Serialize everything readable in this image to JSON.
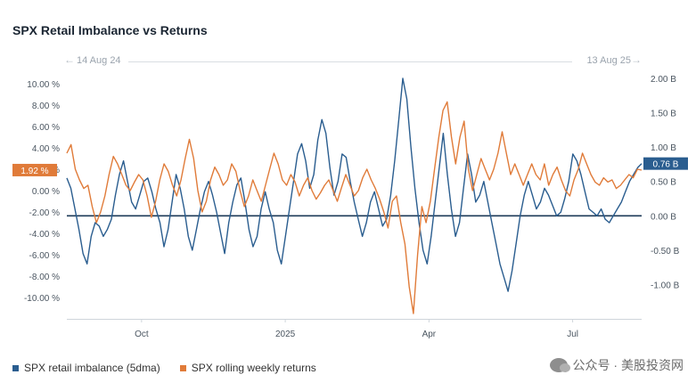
{
  "chart_data": {
    "type": "line",
    "title": "SPX Retail Imbalance vs Returns",
    "range_start_label": "14 Aug 24",
    "range_end_label": "13 Aug 25",
    "x_tick_labels": [
      "Oct",
      "2025",
      "Apr",
      "Jul"
    ],
    "x_tick_positions": [
      0.13,
      0.38,
      0.63,
      0.88
    ],
    "left_axis": {
      "ticks": [
        "10.00 %",
        "8.00 %",
        "6.00 %",
        "4.00 %",
        "2.00 %",
        "0.00 %",
        "-2.00 %",
        "-4.00 %",
        "-6.00 %",
        "-8.00 %",
        "-10.00 %"
      ],
      "tick_values": [
        10,
        8,
        6,
        4,
        2,
        0,
        -2,
        -4,
        -6,
        -8,
        -10
      ],
      "ylim": [
        -12,
        10.5
      ]
    },
    "right_axis": {
      "ticks": [
        "2.00 B",
        "1.50 B",
        "1.00 B",
        "0.50 B",
        "0.00 B",
        "-0.50 B",
        "-1.00 B"
      ],
      "tick_values": [
        2.0,
        1.5,
        1.0,
        0.5,
        0.0,
        -0.5,
        -1.0
      ],
      "ylim": [
        -1.5,
        2.0
      ]
    },
    "zero_line_value_right": 0.0,
    "series": [
      {
        "name": "SPX retail imbalance (5dma)",
        "axis": "right",
        "color": "#2a5d8f",
        "last_value_label": "0.76 B",
        "values": [
          0.55,
          0.4,
          0.1,
          -0.2,
          -0.55,
          -0.7,
          -0.3,
          -0.1,
          -0.15,
          -0.3,
          -0.2,
          -0.05,
          0.3,
          0.6,
          0.8,
          0.5,
          0.2,
          0.1,
          0.3,
          0.5,
          0.55,
          0.35,
          0.1,
          -0.1,
          -0.45,
          -0.2,
          0.2,
          0.6,
          0.4,
          0.1,
          -0.3,
          -0.5,
          -0.2,
          0.1,
          0.35,
          0.5,
          0.3,
          0.05,
          -0.25,
          -0.55,
          -0.1,
          0.2,
          0.45,
          0.55,
          0.2,
          -0.2,
          -0.45,
          -0.3,
          0.1,
          0.35,
          0.1,
          -0.1,
          -0.5,
          -0.7,
          -0.3,
          0.1,
          0.5,
          0.9,
          1.05,
          0.8,
          0.4,
          0.6,
          1.1,
          1.4,
          1.2,
          0.7,
          0.3,
          0.5,
          0.9,
          0.85,
          0.5,
          0.2,
          -0.05,
          -0.3,
          -0.1,
          0.2,
          0.35,
          0.1,
          -0.15,
          -0.05,
          0.3,
          0.8,
          1.4,
          2.0,
          1.7,
          1.0,
          0.4,
          -0.1,
          -0.5,
          -0.7,
          -0.3,
          0.2,
          0.7,
          1.2,
          0.6,
          0.1,
          -0.3,
          -0.1,
          0.4,
          0.9,
          0.6,
          0.2,
          0.3,
          0.5,
          0.2,
          -0.1,
          -0.4,
          -0.7,
          -0.9,
          -1.1,
          -0.8,
          -0.4,
          0.0,
          0.3,
          0.5,
          0.3,
          0.1,
          0.2,
          0.4,
          0.3,
          0.15,
          0.0,
          0.05,
          0.25,
          0.5,
          0.9,
          0.8,
          0.6,
          0.35,
          0.1,
          0.05,
          0.0,
          0.1,
          -0.05,
          -0.1,
          0.0,
          0.1,
          0.2,
          0.35,
          0.5,
          0.6,
          0.7,
          0.76
        ]
      },
      {
        "name": "SPX rolling weekly returns",
        "axis": "left",
        "color": "#e07b39",
        "last_value_label": "1.92 %",
        "values": [
          3.5,
          4.3,
          2.0,
          1.0,
          0.2,
          0.5,
          -1.5,
          -3.0,
          -2.0,
          -0.5,
          1.5,
          3.2,
          2.5,
          1.5,
          0.5,
          0.0,
          0.8,
          1.5,
          1.0,
          -0.5,
          -2.5,
          -1.0,
          1.0,
          2.5,
          1.8,
          0.5,
          -0.5,
          1.0,
          3.0,
          4.8,
          3.0,
          0.0,
          -2.0,
          -1.0,
          1.0,
          2.2,
          1.5,
          0.5,
          1.0,
          2.5,
          1.8,
          0.0,
          -1.5,
          -0.5,
          1.0,
          0.0,
          -1.0,
          0.5,
          2.0,
          3.5,
          2.5,
          1.0,
          0.5,
          1.5,
          0.8,
          -0.5,
          0.5,
          1.2,
          0.0,
          -0.8,
          -0.2,
          0.5,
          1.0,
          0.0,
          -1.0,
          0.3,
          1.5,
          0.5,
          -0.5,
          0.0,
          1.2,
          2.0,
          1.0,
          0.2,
          -0.8,
          -2.0,
          -3.5,
          -1.0,
          -0.5,
          -3.0,
          -5.0,
          -9.0,
          -11.5,
          -6.0,
          -1.5,
          -3.0,
          -1.0,
          2.0,
          5.0,
          7.5,
          8.3,
          5.0,
          2.5,
          5.0,
          6.5,
          2.0,
          0.0,
          1.5,
          3.0,
          2.0,
          1.0,
          2.0,
          3.5,
          5.5,
          3.5,
          1.5,
          2.5,
          1.5,
          0.5,
          1.5,
          2.5,
          1.5,
          1.0,
          2.5,
          0.5,
          1.5,
          2.2,
          1.0,
          0.0,
          -0.5,
          1.0,
          2.0,
          3.5,
          2.5,
          1.5,
          0.8,
          0.5,
          1.2,
          0.8,
          1.0,
          0.2,
          0.5,
          1.0,
          1.5,
          1.2,
          2.0,
          1.92
        ]
      }
    ]
  }
}
